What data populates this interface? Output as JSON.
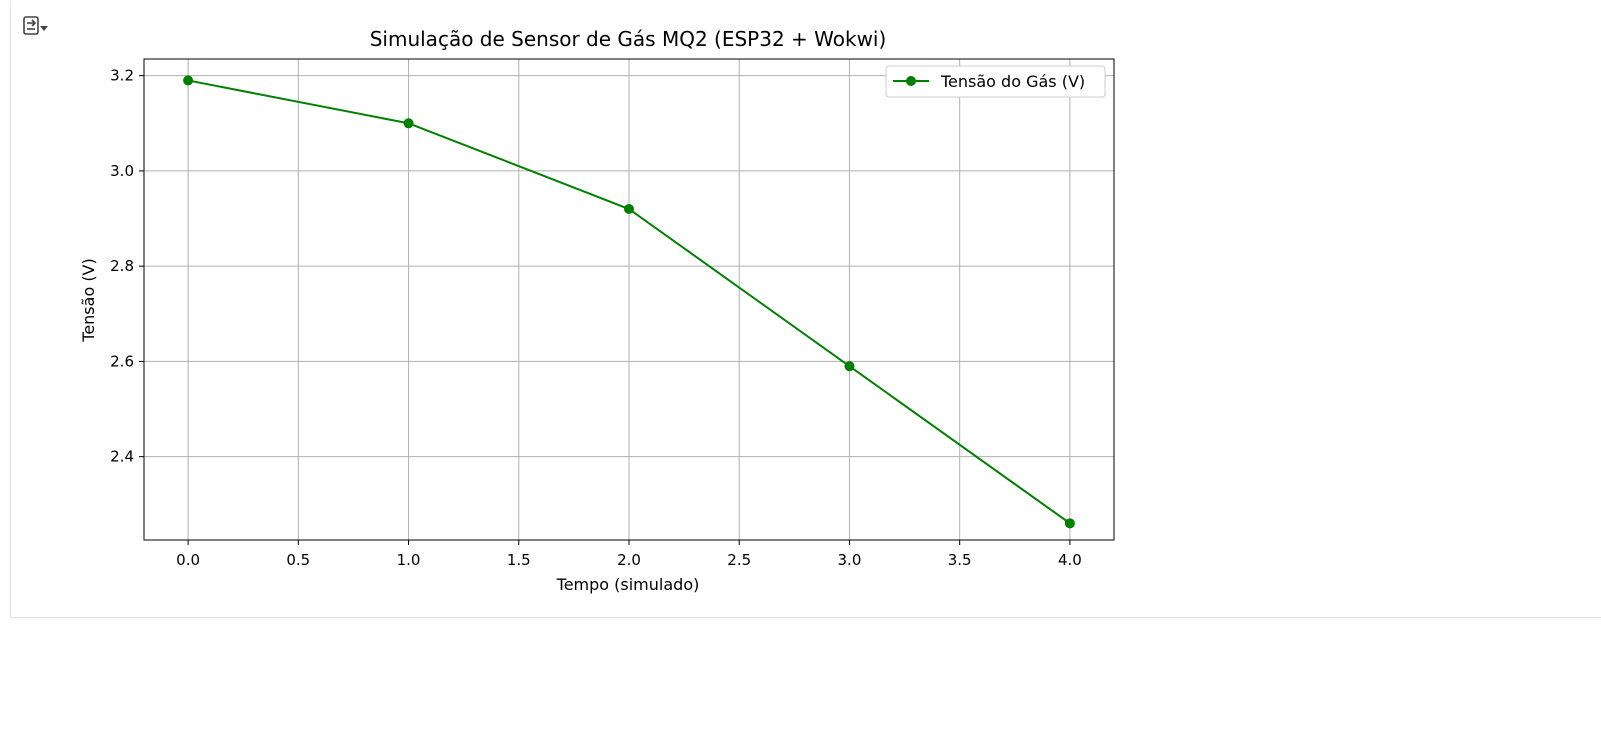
{
  "output": {
    "toggle_icon": "output-toggle-icon"
  },
  "chart_data": {
    "type": "line",
    "title": "Simulação de Sensor de Gás MQ2 (ESP32 + Wokwi)",
    "xlabel": "Tempo (simulado)",
    "ylabel": "Tensão (V)",
    "xlim": [
      -0.2,
      4.2
    ],
    "ylim": [
      2.225,
      3.235
    ],
    "xticks": [
      0.0,
      0.5,
      1.0,
      1.5,
      2.0,
      2.5,
      3.0,
      3.5,
      4.0
    ],
    "xtick_labels": [
      "0.0",
      "0.5",
      "1.0",
      "1.5",
      "2.0",
      "2.5",
      "3.0",
      "3.5",
      "4.0"
    ],
    "yticks": [
      2.4,
      2.6,
      2.8,
      3.0,
      3.2
    ],
    "ytick_labels": [
      "2.4",
      "2.6",
      "2.8",
      "3.0",
      "3.2"
    ],
    "grid": true,
    "legend_position": "top-right",
    "series": [
      {
        "name": "Tensão do Gás (V)",
        "color": "#008000",
        "marker": "circle",
        "x": [
          0,
          1,
          2,
          3,
          4
        ],
        "y": [
          3.19,
          3.1,
          2.92,
          2.59,
          2.26
        ]
      }
    ]
  }
}
